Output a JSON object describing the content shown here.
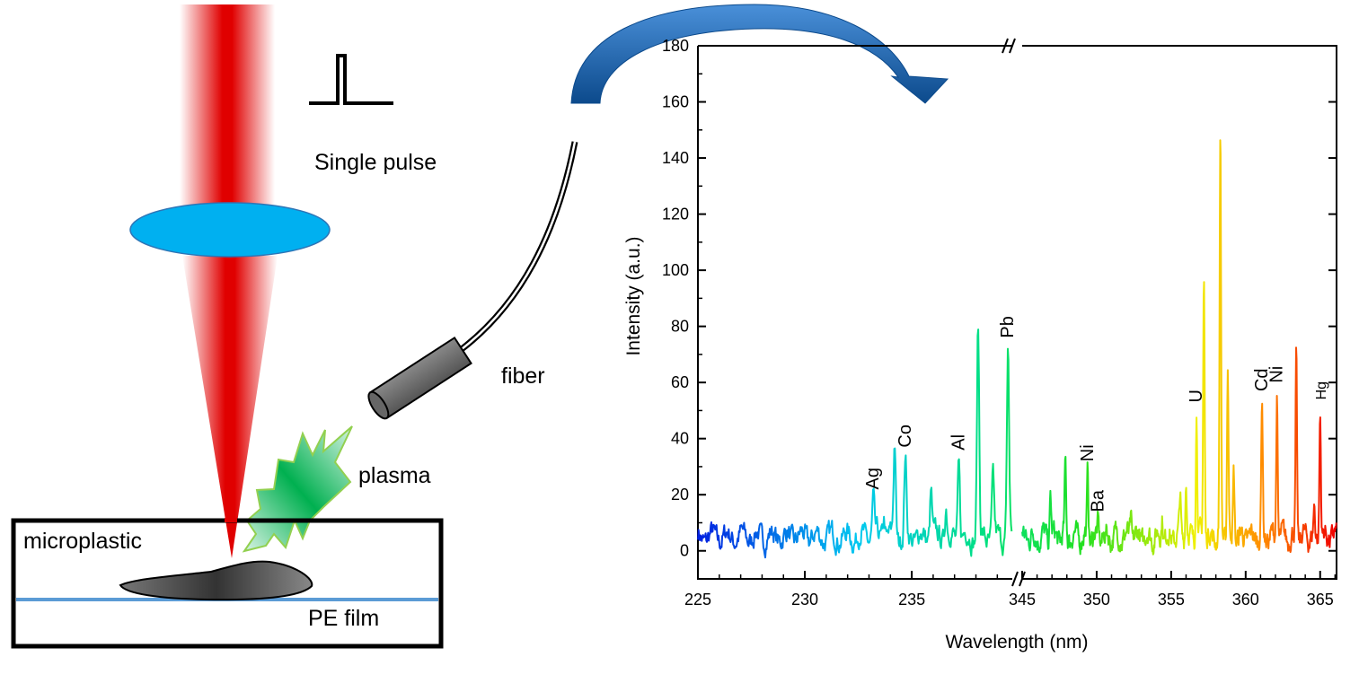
{
  "diagram": {
    "pulse_label": "Single pulse",
    "fiber_label": "fiber",
    "plasma_label": "plasma",
    "sample_label": "microplastic",
    "film_label": "PE film",
    "colors": {
      "laser": "#e00000",
      "lens": "#00b0f0",
      "plasma": "#00b050",
      "film": "#5b9bd5",
      "arrow": "#1f5fa8"
    }
  },
  "chart_data": {
    "type": "line",
    "xlabel": "Wavelength (nm)",
    "ylabel": "Intensity (a.u.)",
    "ylim": [
      -10,
      180
    ],
    "yticks": [
      0,
      20,
      40,
      60,
      80,
      100,
      120,
      140,
      160,
      180
    ],
    "x_segments": [
      {
        "range": [
          225,
          239.7
        ],
        "ticks": [
          225,
          230,
          235
        ]
      },
      {
        "range": [
          345,
          366.1
        ],
        "ticks": [
          345,
          350,
          355,
          360,
          365
        ]
      }
    ],
    "axis_break": true,
    "baseline": 5,
    "color_scale": "blue-to-red by wavelength",
    "peaks": [
      {
        "x": 233.2,
        "y": 18
      },
      {
        "x": 233.7,
        "y": 13
      },
      {
        "x": 234.2,
        "y": 39
      },
      {
        "x": 234.7,
        "y": 33
      },
      {
        "x": 235.9,
        "y": 22
      },
      {
        "x": 236.6,
        "y": 17
      },
      {
        "x": 237.2,
        "y": 32
      },
      {
        "x": 238.1,
        "y": 80
      },
      {
        "x": 238.8,
        "y": 26
      },
      {
        "x": 239.5,
        "y": 72
      },
      {
        "x": 346.9,
        "y": 21
      },
      {
        "x": 347.9,
        "y": 30
      },
      {
        "x": 349.4,
        "y": 28
      },
      {
        "x": 350.1,
        "y": 10
      },
      {
        "x": 352.3,
        "y": 12
      },
      {
        "x": 354.4,
        "y": 13
      },
      {
        "x": 355.6,
        "y": 19
      },
      {
        "x": 356.0,
        "y": 25
      },
      {
        "x": 356.7,
        "y": 49
      },
      {
        "x": 357.2,
        "y": 99
      },
      {
        "x": 358.3,
        "y": 150
      },
      {
        "x": 358.8,
        "y": 66
      },
      {
        "x": 359.2,
        "y": 28
      },
      {
        "x": 361.1,
        "y": 53
      },
      {
        "x": 362.1,
        "y": 56
      },
      {
        "x": 363.4,
        "y": 69
      },
      {
        "x": 364.6,
        "y": 14
      },
      {
        "x": 365.0,
        "y": 50
      }
    ],
    "annotations": [
      {
        "text": "Ag",
        "x": 233.2,
        "y": 18
      },
      {
        "text": "Co",
        "x": 234.7,
        "y": 33
      },
      {
        "text": "Al",
        "x": 237.2,
        "y": 32
      },
      {
        "text": "Pb",
        "x": 239.5,
        "y": 72
      },
      {
        "text": "Ni",
        "x": 349.4,
        "y": 28
      },
      {
        "text": "Ba",
        "x": 350.1,
        "y": 10
      },
      {
        "text": "U",
        "x": 356.7,
        "y": 49
      },
      {
        "text": "Cd",
        "x": 361.1,
        "y": 53
      },
      {
        "text": "Ni",
        "x": 362.1,
        "y": 56
      },
      {
        "text": "Hg",
        "x": 365.0,
        "y": 50
      }
    ]
  }
}
